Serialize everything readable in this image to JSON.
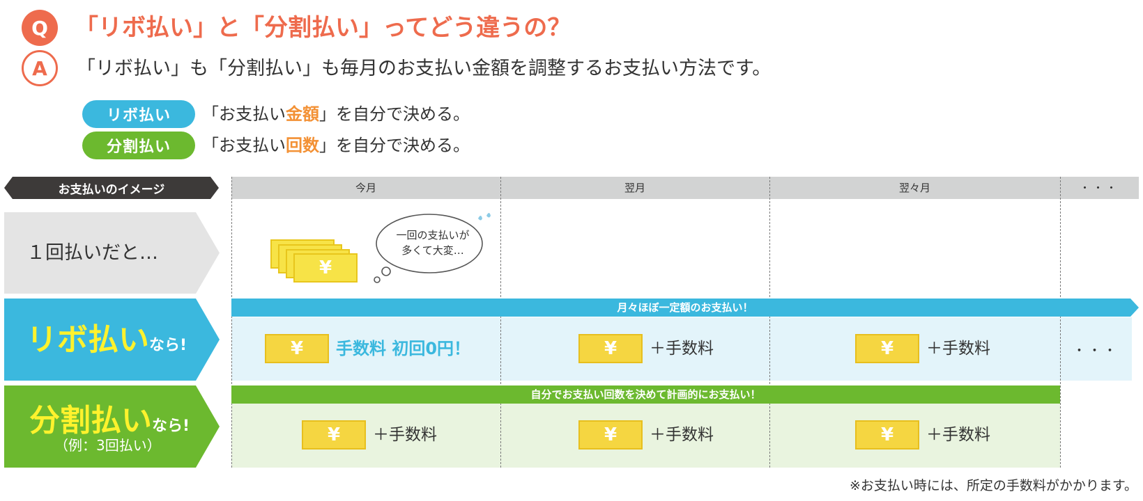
{
  "qa": {
    "q_label": "Q",
    "question": "「リボ払い」と「分割払い」ってどう違うの？",
    "a_label": "A",
    "answer": "「リボ払い」も「分割払い」も毎月のお支払い金額を調整するお支払い方法です。"
  },
  "methods": [
    {
      "label": "リボ払い",
      "text_before": "「お支払い",
      "highlight": "金額",
      "text_after": "」を自分で決める。",
      "color": "#3bb8de"
    },
    {
      "label": "分割払い",
      "text_before": "「お支払い",
      "highlight": "回数",
      "text_after": "」を自分で決める。",
      "color": "#6cb92f"
    }
  ],
  "highlight_color": "#f39135",
  "table": {
    "header_label": "お支払いのイメージ",
    "columns": [
      "今月",
      "翌月",
      "翌々月",
      "・・・"
    ],
    "rows": {
      "lump": {
        "label": "１回払いだと…",
        "bubble_line1": "一回の支払いが",
        "bubble_line2": "多くて大変…",
        "yen": "¥"
      },
      "revo": {
        "label_main": "リボ払い",
        "label_suffix": "なら!",
        "bar_text": "月々ほぼ一定額のお支払い！",
        "cells": [
          "手数料 初回0円！",
          "＋手数料",
          "＋手数料"
        ],
        "ellipsis": "・・・",
        "yen": "¥",
        "color": "#3bb8de"
      },
      "split": {
        "label_main": "分割払い",
        "label_suffix": "なら!",
        "label_example": "（例：3回払い）",
        "bar_text": "自分でお支払い回数を決めて計画的にお支払い！",
        "cells": [
          "＋手数料",
          "＋手数料",
          "＋手数料"
        ],
        "yen": "¥",
        "color": "#6cb92f"
      }
    }
  },
  "footnote": "※お支払い時には、所定の手数料がかかります。",
  "icons": {
    "cash_stack": "cash-stack-icon",
    "bill": "yen-bill-icon",
    "thought_bubble": "thought-bubble-icon",
    "sweat": "sweat-drop-icon"
  }
}
